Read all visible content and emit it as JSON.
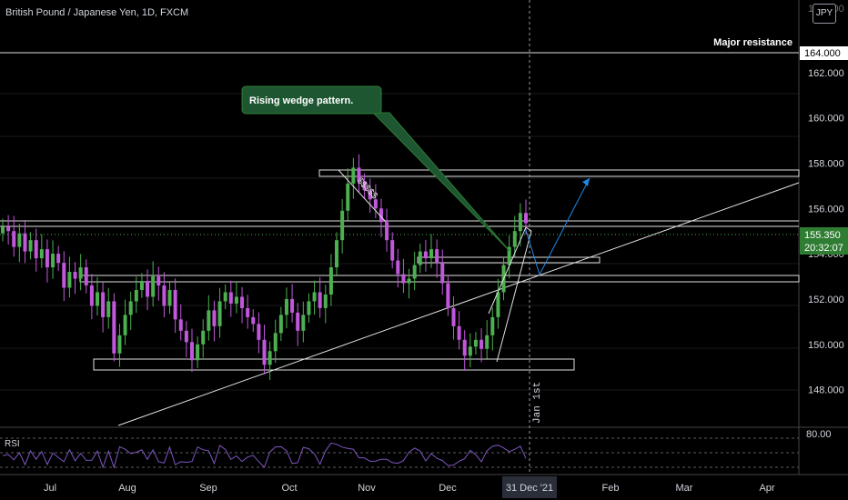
{
  "header": {
    "title": "British Pound / Japanese Yen, 1D, FXCM",
    "currency_badge": "JPY"
  },
  "annotations": {
    "callout": "Rising wedge pattern.",
    "major_resistance": "Major resistance",
    "dollars": "$$$$$",
    "jan_first": "Jan 1st",
    "price_time": "20:32:07"
  },
  "rsi": {
    "label": "RSI",
    "level_label": "80.00"
  },
  "colors": {
    "up": "#4caf50",
    "down": "#c158dc",
    "background": "#000000",
    "callout": "#1e5631",
    "price_tag": "#2e7d32"
  },
  "chart_data": {
    "type": "candlestick",
    "title": "British Pound / Japanese Yen, 1D, FXCM",
    "y_ticks": [
      148,
      150,
      152,
      154,
      156,
      158,
      160,
      162
    ],
    "y_range": [
      146.5,
      164.8
    ],
    "x_ticks": [
      "Jul",
      "Aug",
      "Sep",
      "Oct",
      "Nov",
      "Dec",
      "31 Dec '21",
      "Feb",
      "Mar",
      "Apr"
    ],
    "last_price": "155.350",
    "major_resistance_level": "164.000",
    "wedge_breakout_target": 158.0,
    "closes": [
      155.2,
      155.0,
      154.3,
      154.9,
      154.1,
      154.6,
      153.8,
      154.2,
      153.4,
      154.0,
      153.6,
      152.5,
      153.2,
      152.9,
      153.4,
      152.6,
      151.7,
      152.3,
      151.2,
      151.9,
      149.6,
      150.4,
      151.3,
      151.9,
      152.4,
      152.8,
      152.1,
      153.0,
      152.6,
      151.7,
      152.4,
      151.1,
      150.6,
      150.1,
      149.3,
      150.0,
      150.6,
      151.5,
      150.8,
      151.9,
      152.3,
      151.8,
      152.1,
      151.6,
      151.2,
      150.9,
      150.2,
      149.1,
      149.7,
      150.5,
      151.3,
      152.0,
      151.4,
      150.6,
      151.3,
      151.9,
      152.3,
      151.6,
      152.2,
      153.4,
      154.6,
      155.9,
      157.1,
      157.8,
      157.2,
      156.8,
      156.4,
      156.0,
      155.4,
      154.6,
      153.7,
      153.1,
      152.7,
      152.9,
      153.5,
      154.1,
      153.8,
      154.2,
      153.6,
      152.7,
      151.6,
      150.8,
      150.2,
      149.5,
      149.9,
      150.2,
      149.8,
      150.4,
      151.2,
      152.3,
      153.5,
      154.3,
      155.0,
      155.8,
      155.35
    ]
  }
}
